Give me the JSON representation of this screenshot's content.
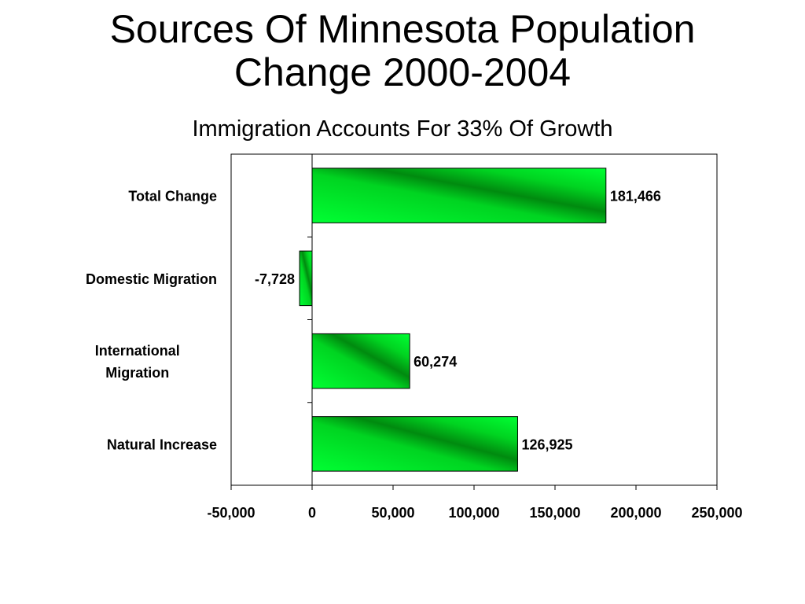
{
  "slide": {
    "title_line1": "Sources Of Minnesota Population",
    "title_line2": "Change 2000-2004",
    "subtitle": "Immigration Accounts For 33% Of Growth"
  },
  "chart_data": {
    "type": "bar",
    "orientation": "horizontal",
    "categories": [
      [
        "Total Change"
      ],
      [
        "Domestic Migration"
      ],
      [
        "International",
        "Migration"
      ],
      [
        "Natural Increase"
      ]
    ],
    "values": [
      181466,
      -7728,
      60274,
      126925
    ],
    "data_labels": [
      "181,466",
      "-7,728",
      "60,274",
      "126,925"
    ],
    "xlim": [
      -50000,
      250000
    ],
    "xticks": [
      -50000,
      0,
      50000,
      100000,
      150000,
      200000,
      250000
    ],
    "xtick_labels": [
      "-50,000",
      "0",
      "50,000",
      "100,000",
      "150,000",
      "200,000",
      "250,000"
    ],
    "grid": false,
    "legend": "none",
    "colors": {
      "bar_light": "#00ff33",
      "bar_dark": "#008a0f",
      "bar_border": "#000000",
      "axis": "#000000"
    }
  }
}
